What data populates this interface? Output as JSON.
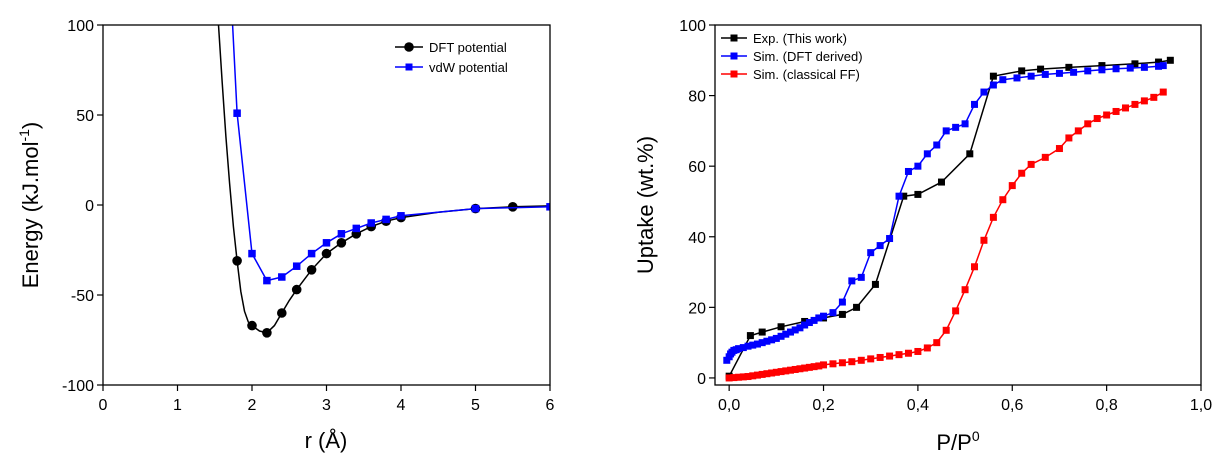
{
  "chart_data": [
    {
      "type": "line",
      "xlabel": "r (Å)",
      "ylabel": "Energy (kJ.mol",
      "ylabel_sup": "-1",
      "ylabel_end": ")",
      "xlim": [
        0,
        6
      ],
      "ylim": [
        -100,
        100
      ],
      "xticks": [
        0,
        1,
        2,
        3,
        4,
        5,
        6
      ],
      "yticks": [
        -100,
        -50,
        0,
        50,
        100
      ],
      "xtick_labels": [
        "0",
        "1",
        "2",
        "3",
        "4",
        "5",
        "6"
      ],
      "ytick_labels": [
        "-100",
        "-50",
        "0",
        "50",
        "100"
      ],
      "grid": false,
      "legend_position": "top-right",
      "series": [
        {
          "name": "DFT potential",
          "color": "#000000",
          "marker": "circle",
          "x": [
            1.8,
            2.0,
            2.2,
            2.4,
            2.6,
            2.8,
            3.0,
            3.2,
            3.4,
            3.6,
            3.8,
            4.0,
            5.0,
            5.5
          ],
          "y": [
            -31,
            -67,
            -71,
            -60,
            -47,
            -36,
            -27,
            -21,
            -16,
            -12,
            -9,
            -7,
            -2,
            -1
          ],
          "curve": {
            "x": [
              1.55,
              1.6,
              1.65,
              1.7,
              1.75,
              1.8,
              1.85,
              1.9,
              1.95,
              2.0,
              2.1,
              2.2,
              2.3,
              2.4,
              2.5,
              2.6,
              2.8,
              3.0,
              3.2,
              3.4,
              3.6,
              3.8,
              4.0,
              4.5,
              5.0,
              5.5,
              6.0
            ],
            "y": [
              100,
              68,
              38,
              12,
              -12,
              -31,
              -48,
              -59,
              -65,
              -67,
              -70,
              -71,
              -67,
              -60,
              -53,
              -47,
              -36,
              -27,
              -21,
              -16,
              -12,
              -9,
              -7,
              -4,
              -2,
              -1,
              -0.5
            ]
          }
        },
        {
          "name": "vdW potential",
          "color": "#0000ff",
          "marker": "square",
          "x": [
            1.8,
            2.0,
            2.2,
            2.4,
            2.6,
            2.8,
            3.0,
            3.2,
            3.4,
            3.6,
            3.8,
            4.0,
            5.0,
            6.0
          ],
          "y": [
            51,
            -27,
            -42,
            -40,
            -34,
            -27,
            -21,
            -16,
            -13,
            -10,
            -8,
            -6,
            -2,
            -1
          ],
          "lead": {
            "x": [
              1.74,
              1.8
            ],
            "y": [
              100,
              51
            ]
          }
        }
      ]
    },
    {
      "type": "line",
      "xlabel": "P/P",
      "xlabel_sup": "0",
      "ylabel": "Uptake (wt.%)",
      "xlim": [
        -0.03,
        1.0
      ],
      "ylim": [
        -2,
        100
      ],
      "xticks": [
        0.0,
        0.2,
        0.4,
        0.6,
        0.8,
        1.0
      ],
      "yticks": [
        0,
        20,
        40,
        60,
        80,
        100
      ],
      "xtick_labels": [
        "0,0",
        "0,2",
        "0,4",
        "0,6",
        "0,8",
        "1,0"
      ],
      "ytick_labels": [
        "0",
        "20",
        "40",
        "60",
        "80",
        "100"
      ],
      "grid": false,
      "legend_position": "top-left",
      "series": [
        {
          "name": "Exp. (This work)",
          "color": "#000000",
          "marker": "square",
          "x": [
            0.0,
            0.045,
            0.07,
            0.11,
            0.16,
            0.2,
            0.24,
            0.27,
            0.31,
            0.37,
            0.4,
            0.45,
            0.51,
            0.56,
            0.62,
            0.66,
            0.72,
            0.79,
            0.86,
            0.91,
            0.935
          ],
          "y": [
            0.5,
            12,
            13,
            14.5,
            16,
            17,
            18,
            20,
            26.5,
            51.5,
            52,
            55.5,
            63.5,
            85.5,
            87,
            87.5,
            88,
            88.5,
            89,
            89.5,
            90
          ]
        },
        {
          "name": "Sim. (DFT derived)",
          "color": "#0000ff",
          "marker": "square",
          "x": [
            -0.005,
            0.0,
            0.003,
            0.006,
            0.01,
            0.015,
            0.02,
            0.03,
            0.04,
            0.05,
            0.06,
            0.07,
            0.08,
            0.09,
            0.1,
            0.11,
            0.12,
            0.13,
            0.14,
            0.15,
            0.16,
            0.17,
            0.18,
            0.19,
            0.2,
            0.22,
            0.24,
            0.26,
            0.28,
            0.3,
            0.32,
            0.34,
            0.36,
            0.38,
            0.4,
            0.42,
            0.44,
            0.46,
            0.48,
            0.5,
            0.52,
            0.54,
            0.56,
            0.58,
            0.61,
            0.64,
            0.67,
            0.7,
            0.73,
            0.76,
            0.79,
            0.82,
            0.85,
            0.88,
            0.91,
            0.92
          ],
          "y": [
            5.0,
            6.0,
            6.8,
            7.3,
            7.8,
            8.0,
            8.3,
            8.6,
            9.0,
            9.3,
            9.6,
            10.0,
            10.4,
            10.8,
            11.2,
            11.8,
            12.4,
            13.0,
            13.6,
            14.2,
            15.0,
            15.7,
            16.3,
            17.0,
            17.5,
            18.5,
            21.5,
            27.5,
            28.5,
            35.5,
            37.5,
            39.5,
            51.5,
            58.5,
            60.0,
            63.5,
            66.0,
            70.0,
            71.0,
            72.0,
            77.5,
            81.0,
            83.0,
            84.5,
            85.0,
            85.5,
            86.0,
            86.3,
            86.6,
            87.0,
            87.3,
            87.6,
            87.8,
            88.0,
            88.3,
            88.5
          ]
        },
        {
          "name": "Sim. (classical FF)",
          "color": "#ff0000",
          "marker": "square",
          "x": [
            0.0,
            0.01,
            0.02,
            0.03,
            0.04,
            0.05,
            0.06,
            0.07,
            0.08,
            0.09,
            0.1,
            0.11,
            0.12,
            0.13,
            0.14,
            0.15,
            0.16,
            0.17,
            0.18,
            0.19,
            0.2,
            0.22,
            0.24,
            0.26,
            0.28,
            0.3,
            0.32,
            0.34,
            0.36,
            0.38,
            0.4,
            0.42,
            0.44,
            0.46,
            0.48,
            0.5,
            0.52,
            0.54,
            0.56,
            0.58,
            0.6,
            0.62,
            0.64,
            0.67,
            0.7,
            0.72,
            0.74,
            0.76,
            0.78,
            0.8,
            0.82,
            0.84,
            0.86,
            0.88,
            0.9,
            0.92
          ],
          "y": [
            0.0,
            0.1,
            0.2,
            0.3,
            0.4,
            0.6,
            0.8,
            1.0,
            1.2,
            1.4,
            1.6,
            1.8,
            2.0,
            2.2,
            2.4,
            2.6,
            2.8,
            3.0,
            3.2,
            3.4,
            3.7,
            4.0,
            4.3,
            4.6,
            5.0,
            5.4,
            5.8,
            6.2,
            6.6,
            7.0,
            7.5,
            8.5,
            10.0,
            13.5,
            19.0,
            25.0,
            31.5,
            39.0,
            45.5,
            50.5,
            54.5,
            58.0,
            60.5,
            62.5,
            65.0,
            68.0,
            70.0,
            72.0,
            73.5,
            74.5,
            75.5,
            76.5,
            77.5,
            78.5,
            79.5,
            81.0
          ]
        }
      ]
    }
  ]
}
